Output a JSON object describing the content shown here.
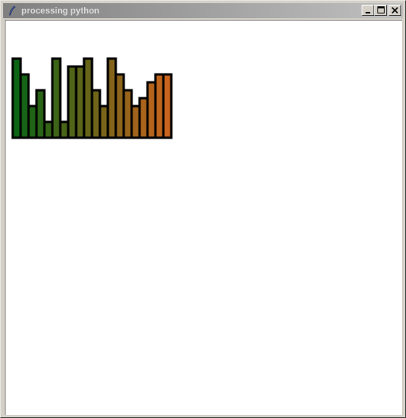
{
  "window": {
    "title": "processing python",
    "buttons": {
      "minimize_icon": "minimize-icon",
      "maximize_icon": "maximize-icon",
      "close_icon": "close-icon"
    },
    "app_icon": "feather-pen-icon",
    "titlebar_colors": [
      "#808080",
      "#c0c0c0"
    ]
  },
  "chart_data": {
    "type": "bar",
    "values": [
      10,
      8,
      4,
      6,
      2,
      10,
      2,
      9,
      9,
      10,
      6,
      4,
      10,
      8,
      6,
      4,
      5,
      7,
      8,
      8
    ],
    "ylim": [
      0,
      10
    ],
    "color_start": "#0c6414",
    "color_end": "#c8641e",
    "stroke": "#000000",
    "grid": false
  }
}
